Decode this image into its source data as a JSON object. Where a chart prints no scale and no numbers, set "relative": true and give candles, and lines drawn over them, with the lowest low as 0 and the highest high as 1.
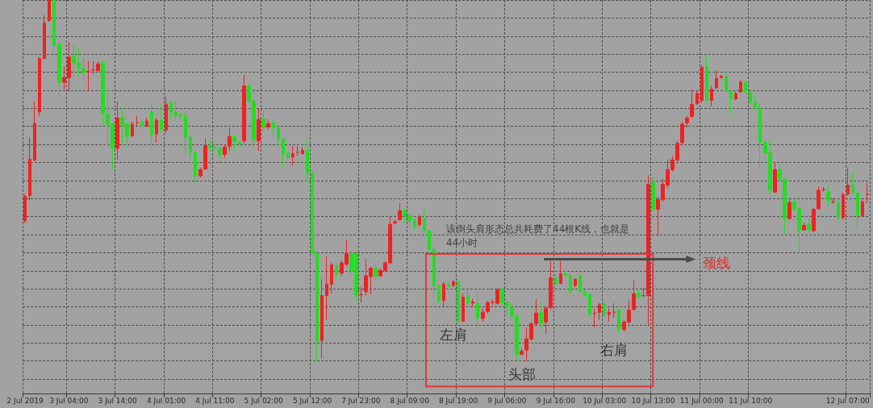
{
  "chart_data": {
    "type": "candlestick",
    "relative": true,
    "grid": true,
    "tick_labels": "x",
    "categories": [
      "2 Jul 2019",
      null,
      null,
      null,
      null,
      null,
      null,
      null,
      null,
      "3 Jul 04:00",
      null,
      null,
      null,
      null,
      null,
      null,
      null,
      null,
      null,
      "3 Jul 14:00",
      null,
      null,
      null,
      null,
      null,
      null,
      null,
      null,
      null,
      "4 Jul 01:00",
      null,
      null,
      null,
      null,
      null,
      null,
      null,
      null,
      null,
      "4 Jul 11:00",
      null,
      null,
      null,
      null,
      null,
      null,
      null,
      null,
      null,
      "5 Jul 02:00",
      null,
      null,
      null,
      null,
      null,
      null,
      null,
      null,
      null,
      "5 Jul 12:00",
      null,
      null,
      null,
      null,
      null,
      null,
      null,
      null,
      null,
      "7 Jul 23:00",
      null,
      null,
      null,
      null,
      null,
      null,
      null,
      null,
      null,
      "8 Jul 09:00",
      null,
      null,
      null,
      null,
      null,
      null,
      null,
      null,
      null,
      "8 Jul 19:00",
      null,
      null,
      null,
      null,
      null,
      null,
      null,
      null,
      null,
      "9 Jul 06:00",
      null,
      null,
      null,
      null,
      null,
      null,
      null,
      null,
      null,
      "9 Jul 16:00",
      null,
      null,
      null,
      null,
      null,
      null,
      null,
      null,
      null,
      "10 Jul 03:00",
      null,
      null,
      null,
      null,
      null,
      null,
      null,
      null,
      null,
      "10 Jul 13:00",
      null,
      null,
      null,
      null,
      null,
      null,
      null,
      null,
      null,
      "11 Jul 00:00",
      null,
      null,
      null,
      null,
      null,
      null,
      null,
      null,
      null,
      "11 Jul 10:00",
      null,
      null,
      null,
      null,
      null,
      null,
      null,
      null,
      null,
      null,
      null,
      null,
      null,
      null,
      null,
      null,
      null,
      null,
      null,
      "12 Jul 07:00",
      null,
      null,
      null,
      null
    ],
    "ohlc": [
      [
        0.388,
        0.462,
        0.382,
        0.456
      ],
      [
        0.458,
        0.62,
        0.445,
        0.559
      ],
      [
        0.557,
        0.719,
        0.553,
        0.658
      ],
      [
        0.69,
        0.842,
        0.679,
        0.838
      ],
      [
        0.838,
        0.958,
        0.835,
        0.937
      ],
      [
        0.943,
        1,
        0.941,
        1
      ],
      [
        1,
        1,
        0.838,
        0.873
      ],
      [
        0.878,
        0.884,
        0.73,
        0.772
      ],
      [
        0.772,
        0.816,
        0.753,
        0.785
      ],
      [
        0.785,
        0.884,
        0.747,
        0.842
      ],
      [
        0.844,
        0.88,
        0.785,
        0.825
      ],
      [
        0.825,
        0.867,
        0.789,
        0.812
      ],
      [
        0.81,
        0.84,
        0.778,
        0.797
      ],
      [
        0.8,
        0.831,
        0.747,
        0.802
      ],
      [
        0.806,
        0.831,
        0.795,
        0.806
      ],
      [
        0.804,
        0.829,
        0.802,
        0.823
      ],
      [
        0.827,
        0.831,
        0.648,
        0.686
      ],
      [
        0.684,
        0.753,
        0.593,
        0.656
      ],
      [
        0.656,
        0.662,
        0.532,
        0.589
      ],
      [
        0.589,
        0.719,
        0.557,
        0.673
      ],
      [
        0.675,
        0.698,
        0.599,
        0.654
      ],
      [
        0.656,
        0.662,
        0.601,
        0.622
      ],
      [
        0.624,
        0.662,
        0.62,
        0.656
      ],
      [
        0.66,
        0.679,
        0.652,
        0.66
      ],
      [
        0.662,
        0.669,
        0.648,
        0.652
      ],
      [
        0.652,
        0.673,
        0.648,
        0.665
      ],
      [
        0.69,
        0.715,
        0.595,
        0.627
      ],
      [
        0.629,
        0.673,
        0.605,
        0.667
      ],
      [
        0.667,
        0.711,
        0.631,
        0.641
      ],
      [
        0.639,
        0.732,
        0.631,
        0.711
      ],
      [
        0.715,
        0.722,
        0.669,
        0.69
      ],
      [
        0.69,
        0.719,
        0.669,
        0.679
      ],
      [
        0.681,
        0.69,
        0.669,
        0.679
      ],
      [
        0.677,
        0.69,
        0.572,
        0.62
      ],
      [
        0.62,
        0.624,
        0.563,
        0.578
      ],
      [
        0.576,
        0.582,
        0.494,
        0.513
      ],
      [
        0.513,
        0.536,
        0.508,
        0.53
      ],
      [
        0.532,
        0.616,
        0.53,
        0.597
      ],
      [
        0.597,
        0.614,
        0.578,
        0.591
      ],
      [
        0.591,
        0.597,
        0.584,
        0.589
      ],
      [
        0.587,
        0.593,
        0.546,
        0.572
      ],
      [
        0.572,
        0.599,
        0.563,
        0.593
      ],
      [
        0.595,
        0.646,
        0.582,
        0.622
      ],
      [
        0.622,
        0.627,
        0.582,
        0.608
      ],
      [
        0.605,
        0.61,
        0.599,
        0.601
      ],
      [
        0.61,
        0.793,
        0.603,
        0.762
      ],
      [
        0.762,
        0.768,
        0.715,
        0.719
      ],
      [
        0.719,
        0.726,
        0.599,
        0.612
      ],
      [
        0.61,
        0.7,
        0.582,
        0.669
      ],
      [
        0.671,
        0.694,
        0.637,
        0.646
      ],
      [
        0.648,
        0.669,
        0.641,
        0.658
      ],
      [
        0.66,
        0.667,
        0.627,
        0.646
      ],
      [
        0.646,
        0.652,
        0.595,
        0.614
      ],
      [
        0.614,
        0.62,
        0.536,
        0.574
      ],
      [
        0.576,
        0.58,
        0.557,
        0.565
      ],
      [
        0.565,
        0.595,
        0.542,
        0.574
      ],
      [
        0.578,
        0.595,
        0.568,
        0.578
      ],
      [
        0.574,
        0.593,
        0.572,
        0.584
      ],
      [
        0.584,
        0.62,
        0.494,
        0.521
      ],
      [
        0.521,
        0.525,
        0.293,
        0.297
      ],
      [
        0.297,
        0.304,
        0,
        0.057
      ],
      [
        0.057,
        0.226,
        0.008,
        0.181
      ],
      [
        0.181,
        0.289,
        0.114,
        0.213
      ],
      [
        0.213,
        0.272,
        0.188,
        0.266
      ],
      [
        0.264,
        0.272,
        0.226,
        0.241
      ],
      [
        0.243,
        0.278,
        0.236,
        0.272
      ],
      [
        0.268,
        0.335,
        0.262,
        0.297
      ],
      [
        0.297,
        0.304,
        0.241,
        0.251
      ],
      [
        0.297,
        0.304,
        0.162,
        0.184
      ],
      [
        0.184,
        0.205,
        0.162,
        0.184
      ],
      [
        0.192,
        0.283,
        0.181,
        0.236
      ],
      [
        0.234,
        0.262,
        0.184,
        0.257
      ],
      [
        0.257,
        0.268,
        0.226,
        0.234
      ],
      [
        0.236,
        0.255,
        0.234,
        0.251
      ],
      [
        0.251,
        0.276,
        0.247,
        0.272
      ],
      [
        0.272,
        0.399,
        0.268,
        0.378
      ],
      [
        0.382,
        0.392,
        0.378,
        0.386
      ],
      [
        0.392,
        0.437,
        0.388,
        0.416
      ],
      [
        0.416,
        0.424,
        0.384,
        0.403
      ],
      [
        0.403,
        0.409,
        0.371,
        0.388
      ],
      [
        0.388,
        0.399,
        0.361,
        0.373
      ],
      [
        0.378,
        0.405,
        0.373,
        0.399
      ],
      [
        0.397,
        0.426,
        0.342,
        0.361
      ],
      [
        0.361,
        0.363,
        0.3,
        0.308
      ],
      [
        0.308,
        0.312,
        0.181,
        0.209
      ],
      [
        0.209,
        0.213,
        0.16,
        0.167
      ],
      [
        0.167,
        0.219,
        0.15,
        0.213
      ],
      [
        0.213,
        0.215,
        0.203,
        0.207
      ],
      [
        0.209,
        0.224,
        0.205,
        0.219
      ],
      [
        0.219,
        0.224,
        0.103,
        0.11
      ],
      [
        0.11,
        0.188,
        0.108,
        0.177
      ],
      [
        0.181,
        0.198,
        0.156,
        0.16
      ],
      [
        0.16,
        0.173,
        0.15,
        0.164
      ],
      [
        0.16,
        0.192,
        0.089,
        0.118
      ],
      [
        0.118,
        0.146,
        0.108,
        0.135
      ],
      [
        0.137,
        0.167,
        0.131,
        0.162
      ],
      [
        0.162,
        0.171,
        0.156,
        0.162
      ],
      [
        0.16,
        0.203,
        0.156,
        0.198
      ],
      [
        0.198,
        0.203,
        0.156,
        0.162
      ],
      [
        0.162,
        0.171,
        0.129,
        0.15
      ],
      [
        0.148,
        0.162,
        0.114,
        0.124
      ],
      [
        0.124,
        0.129,
        0.002,
        0.019
      ],
      [
        0.019,
        0.034,
        0.015,
        0.027
      ],
      [
        0.03,
        0.093,
        0,
        0.061
      ],
      [
        0.061,
        0.108,
        0.057,
        0.103
      ],
      [
        0.103,
        0.171,
        0.099,
        0.133
      ],
      [
        0.135,
        0.162,
        0.089,
        0.105
      ],
      [
        0.108,
        0.15,
        0.076,
        0.146
      ],
      [
        0.148,
        0.276,
        0.143,
        0.23
      ],
      [
        0.23,
        0.241,
        0.209,
        0.213
      ],
      [
        0.215,
        0.278,
        0.213,
        0.241
      ],
      [
        0.243,
        0.251,
        0.234,
        0.236
      ],
      [
        0.236,
        0.241,
        0.188,
        0.192
      ],
      [
        0.209,
        0.23,
        0.205,
        0.226
      ],
      [
        0.236,
        0.241,
        0.188,
        0.192
      ],
      [
        0.192,
        0.198,
        0.177,
        0.181
      ],
      [
        0.184,
        0.188,
        0.122,
        0.129
      ],
      [
        0.131,
        0.146,
        0.093,
        0.133
      ],
      [
        0.135,
        0.16,
        0.114,
        0.156
      ],
      [
        0.158,
        0.167,
        0.124,
        0.129
      ],
      [
        0.129,
        0.146,
        0.11,
        0.135
      ],
      [
        0.135,
        0.16,
        0.12,
        0.135
      ],
      [
        0.141,
        0.146,
        0.078,
        0.087
      ],
      [
        0.087,
        0.114,
        0.082,
        0.108
      ],
      [
        0.108,
        0.167,
        0.103,
        0.141
      ],
      [
        0.143,
        0.224,
        0.139,
        0.186
      ],
      [
        0.188,
        0.198,
        0.173,
        0.177
      ],
      [
        0.181,
        0.203,
        0.177,
        0.181
      ],
      [
        0.181,
        0.515,
        0.097,
        0.489
      ],
      [
        0.494,
        0.515,
        0.414,
        0.42
      ],
      [
        0.42,
        0.456,
        0.346,
        0.447
      ],
      [
        0.447,
        0.504,
        0.441,
        0.489
      ],
      [
        0.487,
        0.557,
        0.479,
        0.53
      ],
      [
        0.53,
        0.568,
        0.525,
        0.557
      ],
      [
        0.557,
        0.61,
        0.553,
        0.603
      ],
      [
        0.605,
        0.662,
        0.599,
        0.656
      ],
      [
        0.66,
        0.679,
        0.648,
        0.673
      ],
      [
        0.677,
        0.751,
        0.673,
        0.711
      ],
      [
        0.713,
        0.747,
        0.709,
        0.741
      ],
      [
        0.722,
        0.821,
        0.715,
        0.814
      ],
      [
        0.814,
        0.848,
        0.715,
        0.722
      ],
      [
        0.722,
        0.762,
        0.705,
        0.753
      ],
      [
        0.757,
        0.806,
        0.753,
        0.783
      ],
      [
        0.785,
        0.793,
        0.783,
        0.789
      ],
      [
        0.789,
        0.795,
        0.741,
        0.747
      ],
      [
        0.747,
        0.751,
        0.688,
        0.726
      ],
      [
        0.726,
        0.747,
        0.722,
        0.741
      ],
      [
        0.745,
        0.778,
        0.743,
        0.772
      ],
      [
        0.772,
        0.778,
        0.741,
        0.745
      ],
      [
        0.745,
        0.747,
        0.711,
        0.715
      ],
      [
        0.717,
        0.736,
        0.694,
        0.703
      ],
      [
        0.7,
        0.715,
        0.53,
        0.605
      ],
      [
        0.605,
        0.614,
        0.551,
        0.576
      ],
      [
        0.576,
        0.61,
        0.462,
        0.473
      ],
      [
        0.468,
        0.551,
        0.466,
        0.53
      ],
      [
        0.53,
        0.546,
        0.5,
        0.504
      ],
      [
        0.504,
        0.508,
        0.352,
        0.395
      ],
      [
        0.395,
        0.451,
        0.39,
        0.439
      ],
      [
        0.441,
        0.447,
        0.414,
        0.422
      ],
      [
        0.422,
        0.426,
        0.3,
        0.361
      ],
      [
        0.363,
        0.382,
        0.361,
        0.376
      ],
      [
        0.378,
        0.395,
        0.357,
        0.363
      ],
      [
        0.361,
        0.424,
        0.357,
        0.42
      ],
      [
        0.422,
        0.483,
        0.418,
        0.473
      ],
      [
        0.475,
        0.483,
        0.468,
        0.475
      ],
      [
        0.468,
        0.487,
        0.43,
        0.445
      ],
      [
        0.441,
        0.451,
        0.435,
        0.441
      ],
      [
        0.439,
        0.445,
        0.384,
        0.397
      ],
      [
        0.397,
        0.466,
        0.392,
        0.46
      ],
      [
        0.462,
        0.536,
        0.458,
        0.487
      ],
      [
        0.487,
        0.521,
        0.462,
        0.468
      ],
      [
        0.466,
        0.473,
        0.363,
        0.403
      ],
      [
        0.403,
        0.447,
        0.399,
        0.441
      ],
      [
        0.462,
        0.494,
        0.437,
        0.462
      ]
    ],
    "colors": [
      "#ee2222",
      "#ee2222",
      "#ee2222",
      "#ee2222",
      "#ee2222",
      "#ee2222",
      "#22dd22",
      "#22dd22",
      "#ee2222",
      "#ee2222",
      "#22dd22",
      "#22dd22",
      "#22dd22",
      "#ee2222",
      "#ee2222",
      "#ee2222",
      "#22dd22",
      "#22dd22",
      "#22dd22",
      "#ee2222",
      "#22dd22",
      "#22dd22",
      "#ee2222",
      "#ee2222",
      "#22dd22",
      "#ee2222",
      "#22dd22",
      "#ee2222",
      "#22dd22",
      "#ee2222",
      "#22dd22",
      "#22dd22",
      "#22dd22",
      "#22dd22",
      "#22dd22",
      "#22dd22",
      "#ee2222",
      "#ee2222",
      "#22dd22",
      "#22dd22",
      "#22dd22",
      "#ee2222",
      "#ee2222",
      "#22dd22",
      "#22dd22",
      "#ee2222",
      "#22dd22",
      "#22dd22",
      "#ee2222",
      "#22dd22",
      "#ee2222",
      "#22dd22",
      "#22dd22",
      "#22dd22",
      "#22dd22",
      "#ee2222",
      "#ee2222",
      "#ee2222",
      "#22dd22",
      "#22dd22",
      "#22dd22",
      "#ee2222",
      "#ee2222",
      "#ee2222",
      "#22dd22",
      "#ee2222",
      "#ee2222",
      "#22dd22",
      "#22dd22",
      "#ee2222",
      "#ee2222",
      "#ee2222",
      "#22dd22",
      "#ee2222",
      "#ee2222",
      "#ee2222",
      "#ee2222",
      "#ee2222",
      "#22dd22",
      "#22dd22",
      "#22dd22",
      "#ee2222",
      "#22dd22",
      "#22dd22",
      "#22dd22",
      "#22dd22",
      "#ee2222",
      "#22dd22",
      "#ee2222",
      "#22dd22",
      "#ee2222",
      "#22dd22",
      "#ee2222",
      "#22dd22",
      "#ee2222",
      "#ee2222",
      "#ee2222",
      "#ee2222",
      "#22dd22",
      "#22dd22",
      "#22dd22",
      "#22dd22",
      "#ee2222",
      "#ee2222",
      "#ee2222",
      "#ee2222",
      "#22dd22",
      "#ee2222",
      "#ee2222",
      "#22dd22",
      "#ee2222",
      "#22dd22",
      "#22dd22",
      "#ee2222",
      "#22dd22",
      "#22dd22",
      "#22dd22",
      "#ee2222",
      "#ee2222",
      "#22dd22",
      "#ee2222",
      "#ee2222",
      "#22dd22",
      "#ee2222",
      "#ee2222",
      "#ee2222",
      "#22dd22",
      "#ee2222",
      "#ee2222",
      "#22dd22",
      "#ee2222",
      "#ee2222",
      "#ee2222",
      "#ee2222",
      "#ee2222",
      "#ee2222",
      "#ee2222",
      "#ee2222",
      "#ee2222",
      "#ee2222",
      "#22dd22",
      "#ee2222",
      "#ee2222",
      "#ee2222",
      "#22dd22",
      "#22dd22",
      "#ee2222",
      "#ee2222",
      "#22dd22",
      "#22dd22",
      "#22dd22",
      "#22dd22",
      "#22dd22",
      "#22dd22",
      "#ee2222",
      "#22dd22",
      "#22dd22",
      "#ee2222",
      "#22dd22",
      "#22dd22",
      "#ee2222",
      "#22dd22",
      "#ee2222",
      "#ee2222",
      "#ee2222",
      "#22dd22",
      "#ee2222",
      "#22dd22",
      "#ee2222",
      "#ee2222",
      "#22dd22",
      "#22dd22",
      "#ee2222",
      "#ee2222"
    ],
    "annotations": [
      "该倒头肩形态总共耗费了44根K线，也就是44小时",
      "颈线",
      "左肩",
      "头部",
      "右肩"
    ]
  }
}
